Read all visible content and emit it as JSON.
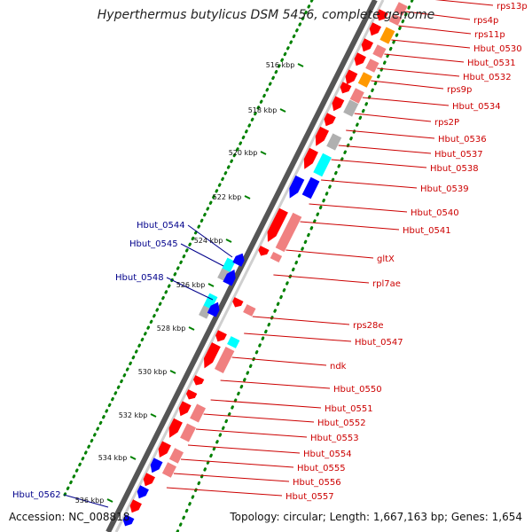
{
  "title": "Hyperthermus butylicus DSM 5456, complete genome",
  "footer": {
    "accession": "Accession: NC_008818",
    "summary": "Topology: circular; Length: 1,667,163 bp; Genes: 1,654"
  },
  "scale_labels": [
    "516 kbp",
    "518 kbp",
    "520 kbp",
    "522 kbp",
    "524 kbp",
    "526 kbp",
    "528 kbp",
    "530 kbp",
    "532 kbp",
    "534 kbp",
    "536 kbp"
  ],
  "forward_genes": [
    "Hbut_0544",
    "Hbut_0545",
    "Hbut_0548",
    "Hbut_0562"
  ],
  "reverse_genes": [
    "rps13p",
    "rps4p",
    "rps11p",
    "Hbut_0530",
    "Hbut_0531",
    "Hbut_0532",
    "rps9p",
    "Hbut_0534",
    "rps2P",
    "Hbut_0536",
    "Hbut_0537",
    "Hbut_0538",
    "Hbut_0539",
    "Hbut_0540",
    "Hbut_0541",
    "gltX",
    "rpl7ae",
    "rps28e",
    "Hbut_0547",
    "ndk",
    "Hbut_0550",
    "Hbut_0551",
    "Hbut_0552",
    "Hbut_0553",
    "Hbut_0554",
    "Hbut_0555",
    "Hbut_0556",
    "Hbut_0557"
  ],
  "colors": {
    "forward_label": "#00008b",
    "reverse_label": "#cc0000",
    "cds_red": "#ff0000",
    "cds_blue": "#0000ff",
    "rrna_cyan": "#00ffff",
    "orange": "#ff9900",
    "gc_pink": "#f08080",
    "gc_gray": "#b0b0b0",
    "scale_dots": "#008000",
    "backbone": "#777777"
  }
}
